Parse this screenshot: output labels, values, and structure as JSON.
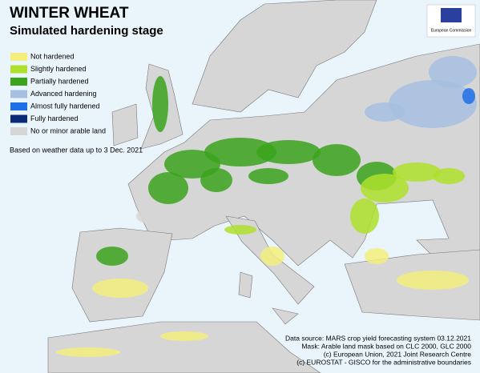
{
  "title": "WINTER WHEAT",
  "subtitle": "Simulated hardening stage",
  "legend": [
    {
      "label": "Not hardened",
      "color": "#f4ee7c"
    },
    {
      "label": "Slightly hardened",
      "color": "#aee02c"
    },
    {
      "label": "Partially hardened",
      "color": "#3ba31c"
    },
    {
      "label": "Advanced hardening",
      "color": "#a7bfe0"
    },
    {
      "label": "Almost fully hardened",
      "color": "#1f6fe6"
    },
    {
      "label": "Fully hardened",
      "color": "#0a2a78"
    },
    {
      "label": "No or minor arable land",
      "color": "#d6d6d6"
    }
  ],
  "note": "Based on weather data up to 3 Dec. 2021",
  "logo_text": "European Commission",
  "sources": [
    "Data source: MARS crop yield forecasting system 03.12.2021",
    "Mask: Arable land mask based on CLC 2000, GLC 2000",
    "(c) European Union, 2021 Joint Research Centre",
    "(c) EUROSTAT - GISCO for the administrative boundaries"
  ]
}
